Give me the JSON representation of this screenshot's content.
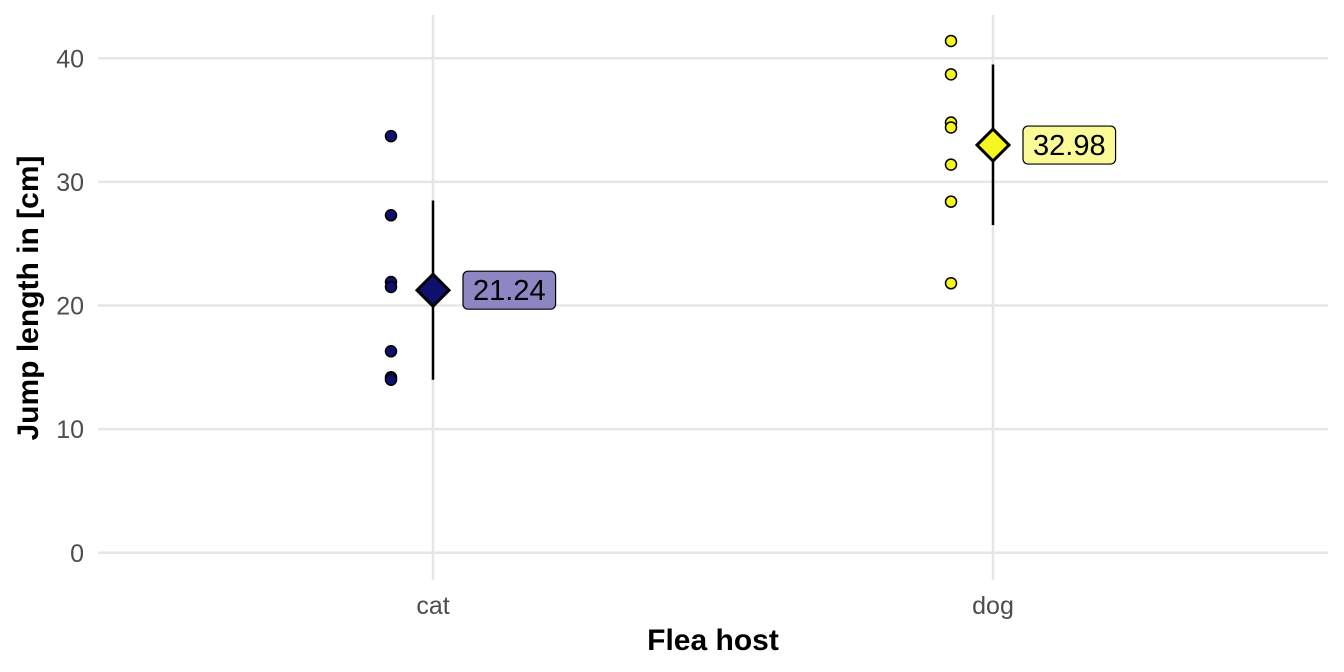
{
  "chart_data": {
    "type": "scatter",
    "title": "",
    "xlabel": "Flea host",
    "ylabel": "Jump length in [cm]",
    "ylim": [
      -2.2,
      43.5
    ],
    "y_ticks": [
      0,
      10,
      20,
      30,
      40
    ],
    "categories": [
      "cat",
      "dog"
    ],
    "grid": true,
    "legend": "none",
    "series": [
      {
        "category": "cat",
        "color": "#0f0f6e",
        "label_fill": "#8c87c2",
        "points": [
          33.7,
          27.3,
          21.9,
          21.5,
          16.3,
          14.2,
          14.0
        ],
        "mean": 21.24,
        "mean_label": "21.24",
        "interval": [
          14.0,
          28.5
        ]
      },
      {
        "category": "dog",
        "color": "#f5f51f",
        "label_fill": "#fafa96",
        "points": [
          41.4,
          38.7,
          34.8,
          34.4,
          31.4,
          28.4,
          21.8
        ],
        "mean": 32.98,
        "mean_label": "32.98",
        "interval": [
          26.5,
          39.5
        ]
      }
    ]
  }
}
